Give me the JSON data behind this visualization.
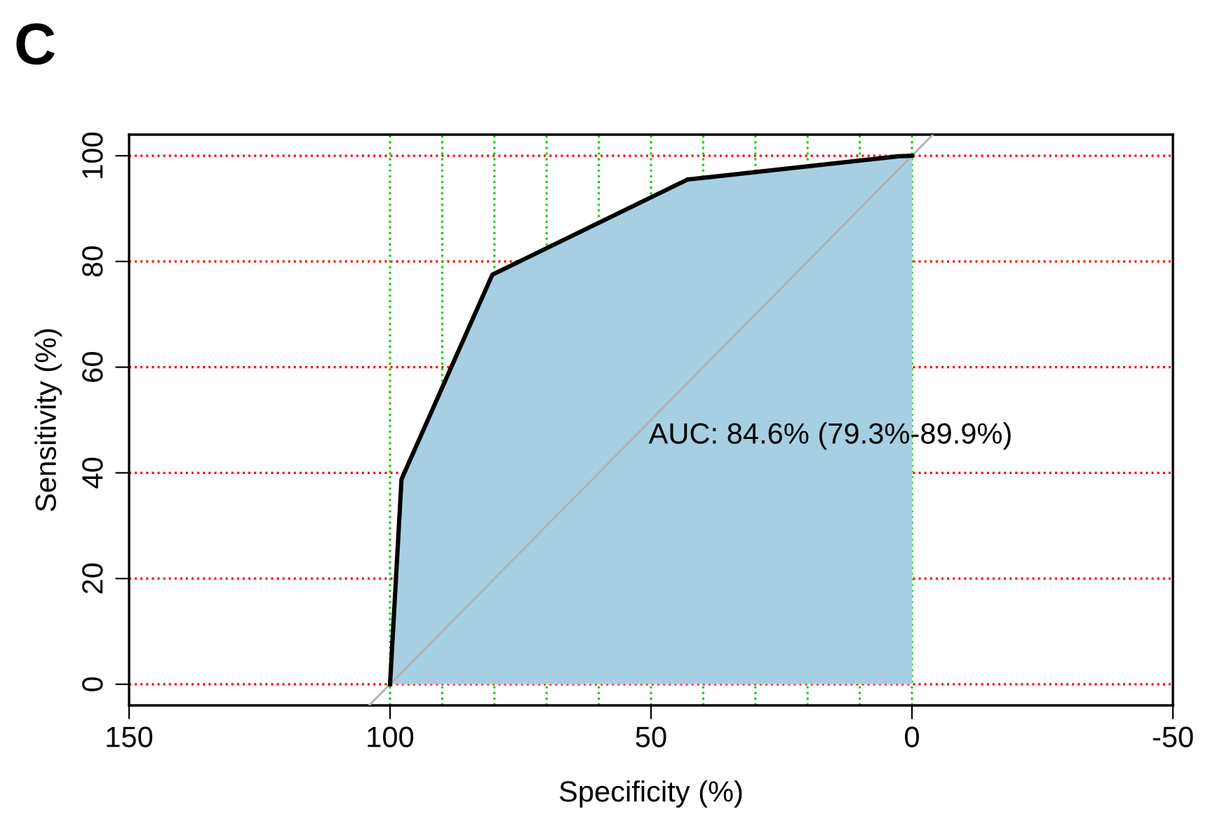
{
  "chart_data": {
    "type": "area",
    "title": "C",
    "xlabel": "Specificity (%)",
    "ylabel": "Sensitivity (%)",
    "xlim": [
      150,
      -50
    ],
    "xticks": [
      150,
      100,
      50,
      0,
      -50
    ],
    "ylim": [
      -4,
      104
    ],
    "yticks": [
      0,
      20,
      40,
      60,
      80,
      100
    ],
    "grid": false,
    "legend": false,
    "series": [
      {
        "color": "#a6cfe3",
        "x": [
          100,
          97.8,
          80.4,
          43.0,
          2.6,
          0
        ],
        "values": [
          0,
          38.8,
          77.5,
          95.5,
          99.9,
          100
        ]
      },
      {
        "type": "line",
        "color": "#b0b0b0",
        "x": [
          104,
          -4
        ],
        "values": [
          -4,
          104
        ]
      }
    ],
    "ref_lines": [
      {
        "axis": "y",
        "value": 0,
        "color": "#ff0000",
        "line_style": "dotted"
      },
      {
        "axis": "y",
        "value": 20,
        "color": "#ff0000",
        "line_style": "dotted"
      },
      {
        "axis": "y",
        "value": 40,
        "color": "#ff0000",
        "line_style": "dotted"
      },
      {
        "axis": "y",
        "value": 60,
        "color": "#ff0000",
        "line_style": "dotted"
      },
      {
        "axis": "y",
        "value": 80,
        "color": "#ff0000",
        "line_style": "dotted"
      },
      {
        "axis": "y",
        "value": 100,
        "color": "#ff0000",
        "line_style": "dotted"
      },
      {
        "axis": "x",
        "value": 100,
        "color": "#00cc00",
        "line_style": "dotted"
      },
      {
        "axis": "x",
        "value": 90,
        "color": "#00cc00",
        "line_style": "dotted"
      },
      {
        "axis": "x",
        "value": 80,
        "color": "#00cc00",
        "line_style": "dotted"
      },
      {
        "axis": "x",
        "value": 70,
        "color": "#00cc00",
        "line_style": "dotted"
      },
      {
        "axis": "x",
        "value": 60,
        "color": "#00cc00",
        "line_style": "dotted"
      },
      {
        "axis": "x",
        "value": 50,
        "color": "#00cc00",
        "line_style": "dotted"
      },
      {
        "axis": "x",
        "value": 40,
        "color": "#00cc00",
        "line_style": "dotted"
      },
      {
        "axis": "x",
        "value": 30,
        "color": "#00cc00",
        "line_style": "dotted"
      },
      {
        "axis": "x",
        "value": 20,
        "color": "#00cc00",
        "line_style": "dotted"
      },
      {
        "axis": "x",
        "value": 10,
        "color": "#00cc00",
        "line_style": "dotted"
      },
      {
        "axis": "x",
        "value": 0,
        "color": "#00cc00",
        "line_style": "dotted"
      }
    ],
    "annotations": [
      "AUC: 84.6% (79.3%-89.9%)"
    ]
  }
}
